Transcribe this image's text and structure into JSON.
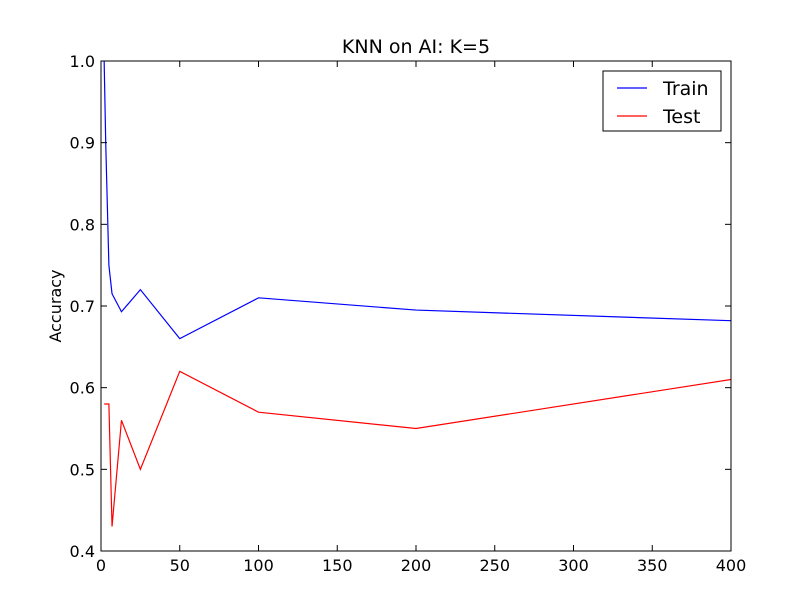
{
  "chart_data": {
    "type": "line",
    "title": "KNN on AI: K=5",
    "xlabel": "",
    "ylabel": "Accuracy",
    "xlim": [
      0,
      400
    ],
    "ylim": [
      0.4,
      1.0
    ],
    "xticks": [
      "0",
      "50",
      "100",
      "150",
      "200",
      "250",
      "300",
      "350",
      "400"
    ],
    "yticks": [
      "0.4",
      "0.5",
      "0.6",
      "0.7",
      "0.8",
      "0.9",
      "1.0"
    ],
    "grid": false,
    "legend_position": "top-right",
    "series": [
      {
        "name": "Train",
        "color": "#0000ff",
        "x": [
          2,
          3,
          5,
          7,
          13,
          25,
          50,
          100,
          200,
          400
        ],
        "y": [
          1.0,
          0.9,
          0.75,
          0.715,
          0.693,
          0.72,
          0.66,
          0.71,
          0.695,
          0.682
        ]
      },
      {
        "name": "Test",
        "color": "#ff0000",
        "x": [
          2,
          3,
          5,
          7,
          13,
          25,
          50,
          100,
          200,
          400
        ],
        "y": [
          0.58,
          0.58,
          0.58,
          0.43,
          0.56,
          0.5,
          0.62,
          0.57,
          0.55,
          0.61
        ]
      }
    ]
  }
}
